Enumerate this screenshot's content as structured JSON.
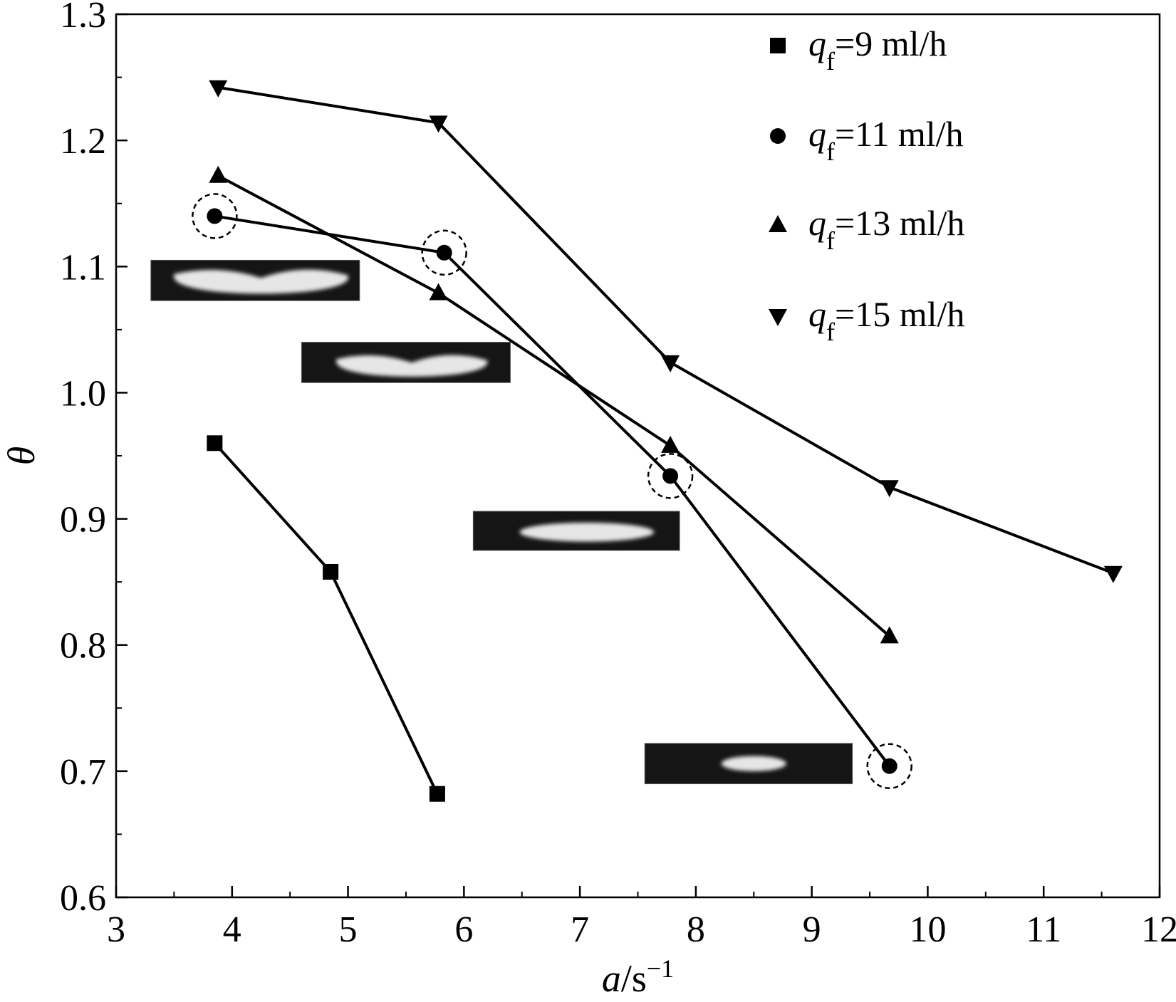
{
  "chart_data": {
    "type": "line",
    "title": "",
    "xlabel": {
      "var": "a",
      "sep": "/",
      "unit": "s",
      "exp": "−1"
    },
    "ylabel": "θ",
    "xlim": [
      3,
      12
    ],
    "ylim": [
      0.6,
      1.3
    ],
    "x_ticks": [
      "3",
      "4",
      "5",
      "6",
      "7",
      "8",
      "9",
      "10",
      "11",
      "12"
    ],
    "y_ticks": [
      "0.6",
      "0.7",
      "0.8",
      "0.9",
      "1.0",
      "1.1",
      "1.2",
      "1.3"
    ],
    "grid": false,
    "legend_position": "top-right",
    "series": [
      {
        "legend_var": "q",
        "legend_sub": "f",
        "legend_value": "=9 ml/h",
        "marker": "square",
        "x": [
          3.85,
          4.85,
          5.77
        ],
        "y": [
          0.96,
          0.858,
          0.682
        ]
      },
      {
        "legend_var": "q",
        "legend_sub": "f",
        "legend_value": "=11 ml/h",
        "marker": "circle",
        "highlight_dashed_circle": true,
        "x": [
          3.85,
          5.83,
          7.78,
          9.67
        ],
        "y": [
          1.14,
          1.111,
          0.934,
          0.704
        ]
      },
      {
        "legend_var": "q",
        "legend_sub": "f",
        "legend_value": "=13 ml/h",
        "marker": "triangle-up",
        "x": [
          3.88,
          5.78,
          7.78,
          9.67
        ],
        "y": [
          1.172,
          1.079,
          0.958,
          0.807
        ]
      },
      {
        "legend_var": "q",
        "legend_sub": "f",
        "legend_value": "=15 ml/h",
        "marker": "triangle-down",
        "x": [
          3.88,
          5.78,
          7.78,
          9.67,
          11.6
        ],
        "y": [
          1.242,
          1.214,
          1.024,
          0.925,
          0.857
        ]
      }
    ],
    "insets": [
      {
        "name": "droplet-image-1",
        "image_x": [
          3.3,
          5.1
        ],
        "image_y": [
          1.073,
          1.105
        ],
        "blob_x": [
          3.5,
          5.0
        ],
        "blob_y": [
          1.08,
          1.1
        ],
        "blob_wave": true
      },
      {
        "name": "droplet-image-2",
        "image_x": [
          4.6,
          6.4
        ],
        "image_y": [
          1.008,
          1.04
        ],
        "blob_x": [
          4.9,
          6.2
        ],
        "blob_y": [
          1.014,
          1.032
        ],
        "blob_wave": true
      },
      {
        "name": "droplet-image-3",
        "image_x": [
          6.08,
          7.86
        ],
        "image_y": [
          0.875,
          0.906
        ],
        "blob_x": [
          6.48,
          7.64
        ],
        "blob_y": [
          0.882,
          0.897
        ],
        "blob_wave": false
      },
      {
        "name": "droplet-image-4",
        "image_x": [
          7.56,
          9.35
        ],
        "image_y": [
          0.69,
          0.722
        ],
        "blob_x": [
          8.22,
          8.78
        ],
        "blob_y": [
          0.7,
          0.712
        ],
        "blob_wave": false
      }
    ]
  }
}
